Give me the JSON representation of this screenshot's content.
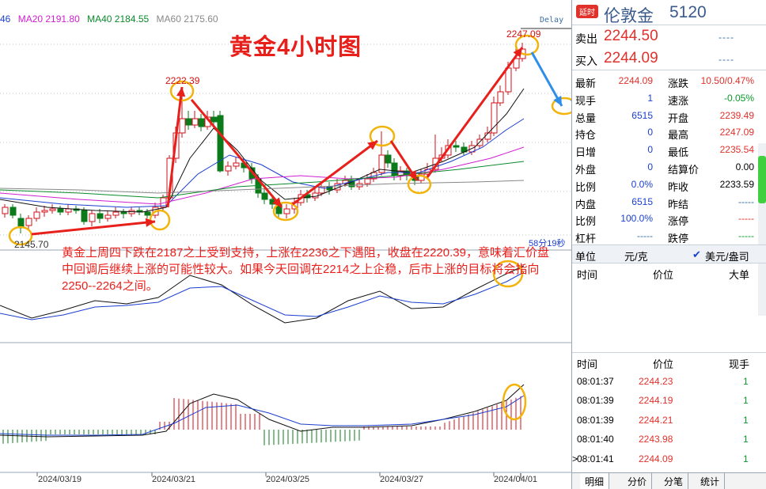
{
  "legend": {
    "ma10": "46",
    "ma20": "MA20 2191.80",
    "ma40": "MA40 2184.55",
    "ma60": "MA60 2175.60",
    "colors": {
      "ma10": "#1a3ed0",
      "ma20": "#d020d0",
      "ma40": "#0a8a2a",
      "ma60": "#888888"
    }
  },
  "delay": "Delay",
  "title": "黄金4小时图",
  "labels": {
    "high1": "2222.39",
    "high2": "2247.09",
    "low1": "2145.70"
  },
  "analysis": "黄金上周四下跌在2187之上受到支持，上涨在2236之下遇阻，收盘在2220.39，意味着汇价盘中回调后继续上涨的可能性较大。如果今天回调在2214之上企稳，后市上涨的目标将会指向2250--2264之间。",
  "timer": "58分19秒",
  "dates": [
    "2024/03/19",
    "2024/03/21",
    "2024/03/25",
    "2024/03/27",
    "2024/04/01"
  ],
  "chart_data": {
    "type": "candlestick",
    "series": [
      {
        "name": "MA20",
        "color": "#d020d0"
      },
      {
        "name": "MA40",
        "color": "#0a8a2a"
      },
      {
        "name": "MA60",
        "color": "#888888"
      }
    ]
  },
  "panel": {
    "badge": "延时",
    "title": "伦敦金",
    "code": "5120",
    "sell_label": "卖出",
    "sell_value": "2244.50",
    "sell_dash": "----",
    "buy_label": "买入",
    "buy_value": "2244.09",
    "buy_dash": "----",
    "stats": [
      {
        "l1": "最新",
        "v1": "2244.09",
        "c1": "red",
        "l2": "涨跌",
        "v2": "10.50/0.47%",
        "c2": "red"
      },
      {
        "l1": "现手",
        "v1": "1",
        "c1": "blue",
        "l2": "速涨",
        "v2": "-0.05%",
        "c2": "green"
      },
      {
        "l1": "总量",
        "v1": "6515",
        "c1": "blue",
        "l2": "开盘",
        "v2": "2239.49",
        "c2": "red"
      },
      {
        "l1": "持仓",
        "v1": "0",
        "c1": "blue",
        "l2": "最高",
        "v2": "2247.09",
        "c2": "red"
      },
      {
        "l1": "日增",
        "v1": "0",
        "c1": "blue",
        "l2": "最低",
        "v2": "2235.54",
        "c2": "red"
      },
      {
        "l1": "外盘",
        "v1": "0",
        "c1": "blue",
        "l2": "结算价",
        "v2": "0.00",
        "c2": "black"
      },
      {
        "l1": "比例",
        "v1": "0.0%",
        "c1": "blue",
        "l2": "昨收",
        "v2": "2233.59",
        "c2": "black"
      },
      {
        "l1": "内盘",
        "v1": "6515",
        "c1": "blue",
        "l2": "昨结",
        "v2": "-----",
        "c2": "dashb"
      },
      {
        "l1": "比例",
        "v1": "100.0%",
        "c1": "blue",
        "l2": "涨停",
        "v2": "-----",
        "c2": "dash"
      },
      {
        "l1": "杠杆",
        "v1": "-----",
        "c1": "dashb",
        "l2": "跌停",
        "v2": "-----",
        "c2": "dashg"
      }
    ],
    "unit_label": "单位",
    "unit_value": "元/克",
    "unit_check": "✔",
    "unit_alt": "美元/盎司",
    "depth_cols": [
      "时间",
      "价位",
      "大单"
    ],
    "trade_cols": [
      "时间",
      "价位",
      "现手"
    ],
    "trades": [
      {
        "time": "08:01:37",
        "price": "2244.23",
        "qty": "1"
      },
      {
        "time": "08:01:39",
        "price": "2244.19",
        "qty": "1"
      },
      {
        "time": "08:01:39",
        "price": "2244.21",
        "qty": "1"
      },
      {
        "time": "08:01:40",
        "price": "2243.98",
        "qty": "1"
      },
      {
        "time": "08:01:41",
        "price": "2244.09",
        "qty": "1"
      }
    ],
    "trade_marker": ">",
    "tabs": [
      "明细",
      "分价",
      "分笔",
      "统计"
    ]
  }
}
